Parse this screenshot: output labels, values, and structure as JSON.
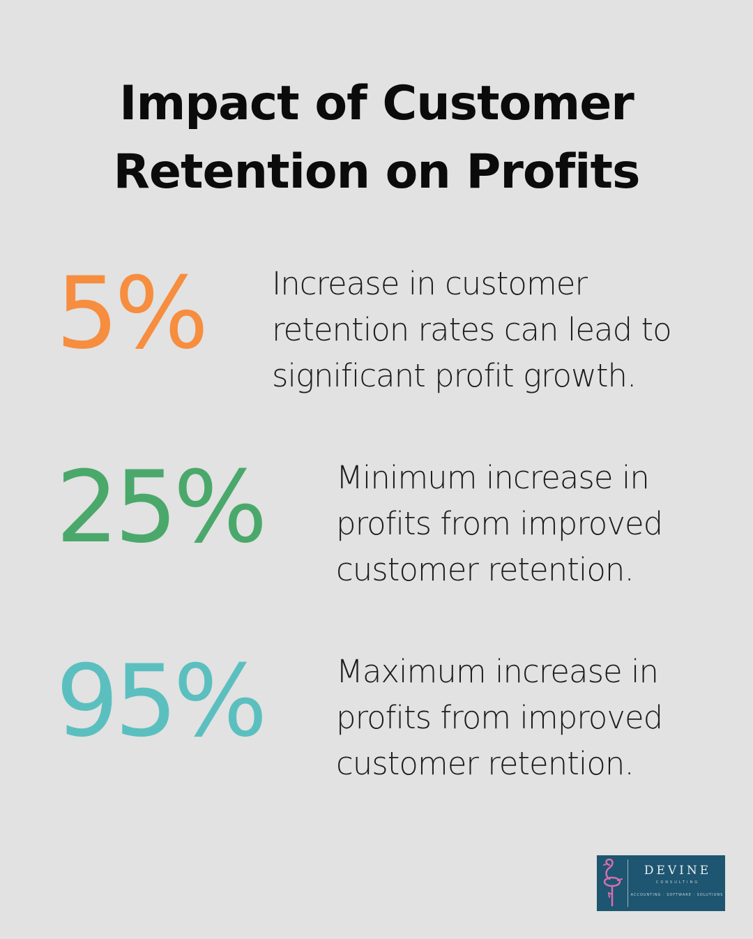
{
  "title": {
    "line1": "Impact of Customer",
    "line2": "Retention on Profits"
  },
  "stats": [
    {
      "value": "5%",
      "color": "#f78d3f",
      "lines": [
        "Increase in customer",
        "retention rates can lead to",
        "significant profit growth."
      ]
    },
    {
      "value": "25%",
      "color": "#4aa86b",
      "lines": [
        "Minimum increase in",
        "profits from improved",
        "customer retention."
      ]
    },
    {
      "value": "95%",
      "color": "#5bbfc0",
      "lines": [
        "Maximum increase in",
        "profits from improved",
        "customer retention."
      ]
    }
  ],
  "logo": {
    "name": "DEVINE",
    "sub": "CONSULTING",
    "tagline": "ACCOUNTING · SOFTWARE · SOLUTIONS",
    "icon": "flamingo-icon",
    "bg": "#1e5570",
    "accent": "#d66fb0"
  }
}
